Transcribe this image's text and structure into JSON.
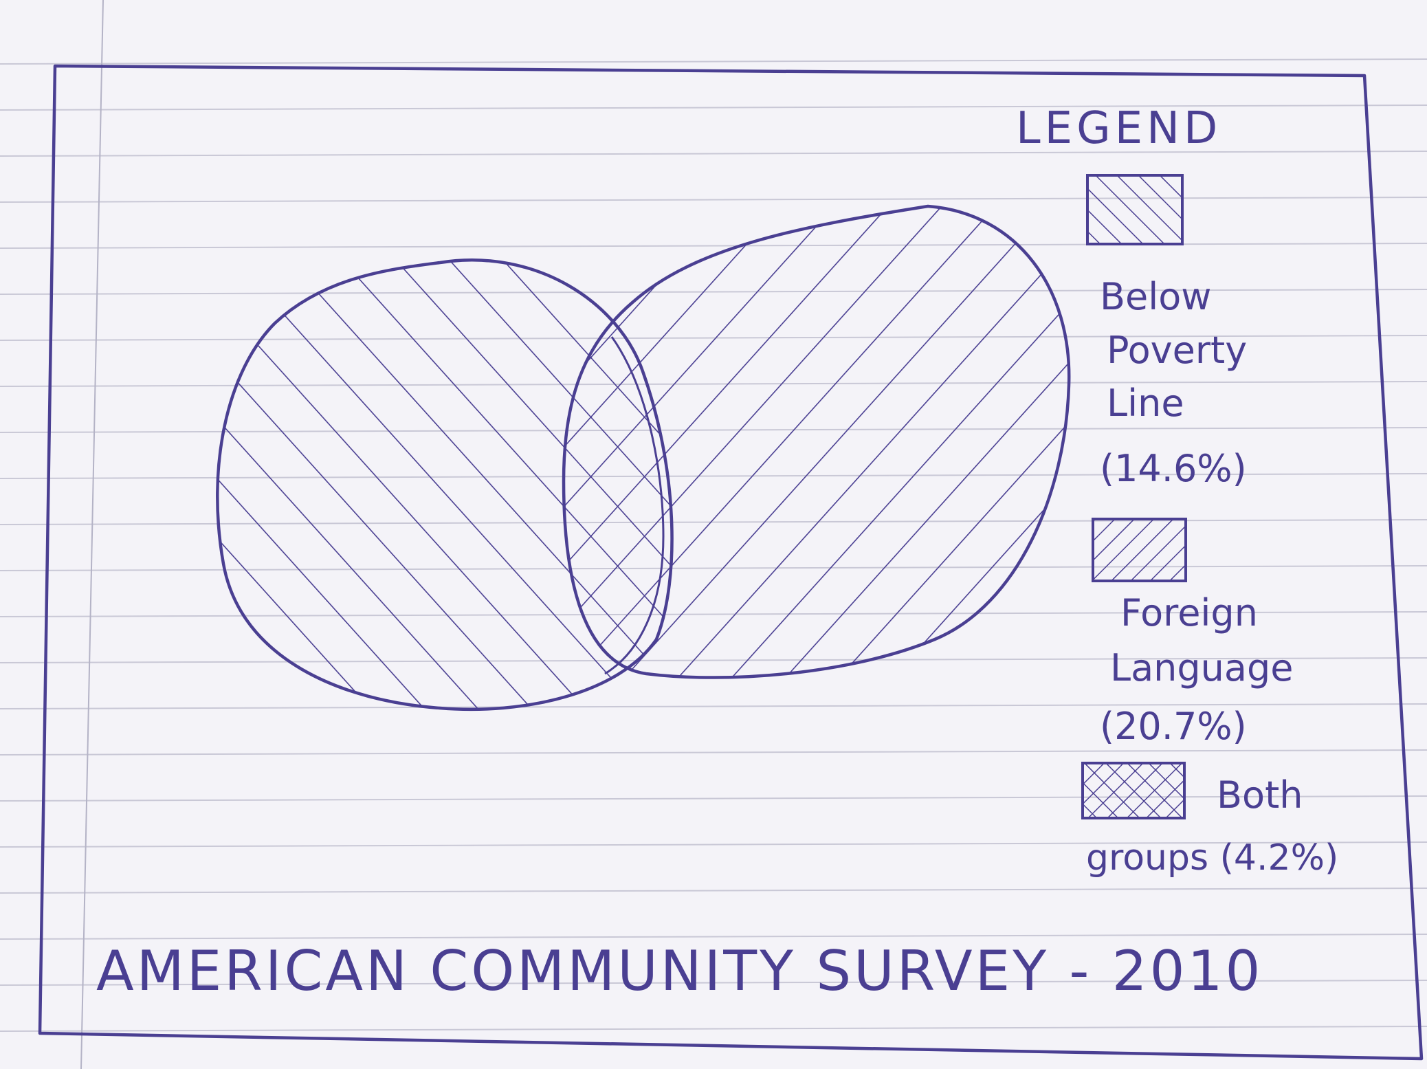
{
  "diagram": {
    "legend": {
      "heading": "LEGEND",
      "items": [
        {
          "pattern": "single-hatch-forward",
          "lines": [
            "Below",
            "Poverty",
            "Line",
            "(14.6%)"
          ]
        },
        {
          "pattern": "single-hatch-backward",
          "lines": [
            "Foreign",
            "Language",
            "(20.7%)"
          ]
        },
        {
          "pattern": "cross-hatch",
          "lines": [
            "Both",
            "groups (4.2%)"
          ]
        }
      ]
    },
    "footer": "AMERICAN COMMUNITY SURVEY - 2010",
    "sets": [
      {
        "label": "Below Poverty Line",
        "percent": 14.6
      },
      {
        "label": "Foreign Language",
        "percent": 20.7
      },
      {
        "label": "Both groups",
        "percent": 4.2
      }
    ]
  },
  "colors": {
    "paper": "#f4f3f8",
    "rule_lines": "#c9c8d6",
    "ink": "#4a3f92",
    "margin_line": "#b4b3c6"
  }
}
